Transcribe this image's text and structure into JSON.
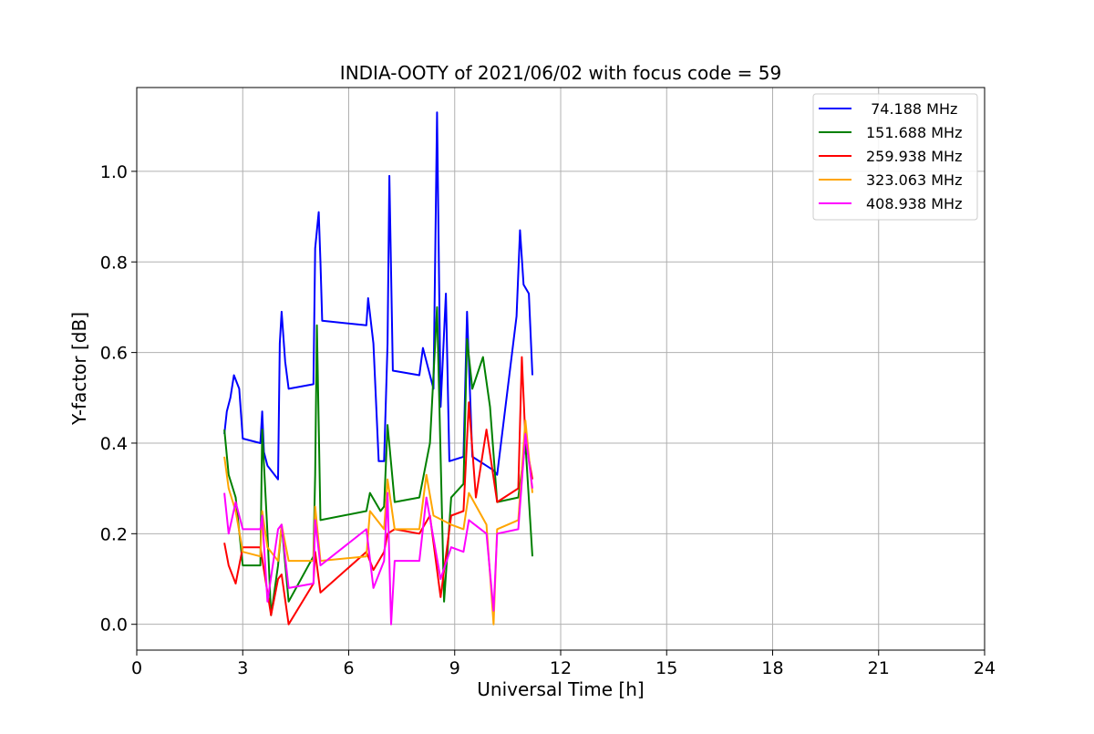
{
  "chart_data": {
    "type": "line",
    "title": "INDIA-OOTY of 2021/06/02 with focus code = 59",
    "xlabel": "Universal Time [h]",
    "ylabel": "Y-factor [dB]",
    "xlim": [
      0,
      24
    ],
    "ylim": [
      -0.057,
      1.185
    ],
    "xticks": [
      0,
      3,
      6,
      9,
      12,
      15,
      18,
      21,
      24
    ],
    "xtick_labels": [
      "0",
      "3",
      "6",
      "9",
      "12",
      "15",
      "18",
      "21",
      "24"
    ],
    "yticks": [
      0.0,
      0.2,
      0.4,
      0.6,
      0.8,
      1.0
    ],
    "ytick_labels": [
      "0.0",
      "0.2",
      "0.4",
      "0.6",
      "0.8",
      "1.0"
    ],
    "grid": true,
    "legend_position": "top-right",
    "series": [
      {
        "name": " 74.188 MHz",
        "color": "#0000ff",
        "data": [
          [
            2.48,
            0.42
          ],
          [
            2.55,
            0.47
          ],
          [
            2.65,
            0.5
          ],
          [
            2.75,
            0.55
          ],
          [
            2.9,
            0.52
          ],
          [
            3.0,
            0.41
          ],
          [
            3.5,
            0.4
          ],
          [
            3.55,
            0.47
          ],
          [
            3.6,
            0.38
          ],
          [
            3.7,
            0.35
          ],
          [
            4.0,
            0.32
          ],
          [
            4.05,
            0.62
          ],
          [
            4.1,
            0.69
          ],
          [
            4.2,
            0.58
          ],
          [
            4.3,
            0.52
          ],
          [
            5.0,
            0.53
          ],
          [
            5.05,
            0.83
          ],
          [
            5.15,
            0.91
          ],
          [
            5.2,
            0.8
          ],
          [
            5.25,
            0.67
          ],
          [
            6.5,
            0.66
          ],
          [
            6.55,
            0.72
          ],
          [
            6.7,
            0.62
          ],
          [
            6.85,
            0.36
          ],
          [
            7.0,
            0.36
          ],
          [
            7.1,
            0.62
          ],
          [
            7.15,
            0.99
          ],
          [
            7.25,
            0.56
          ],
          [
            8.0,
            0.55
          ],
          [
            8.1,
            0.61
          ],
          [
            8.4,
            0.52
          ],
          [
            8.5,
            1.13
          ],
          [
            8.6,
            0.48
          ],
          [
            8.75,
            0.73
          ],
          [
            8.85,
            0.36
          ],
          [
            9.25,
            0.37
          ],
          [
            9.35,
            0.69
          ],
          [
            9.5,
            0.37
          ],
          [
            9.9,
            0.35
          ],
          [
            10.1,
            0.34
          ],
          [
            10.2,
            0.33
          ],
          [
            10.75,
            0.68
          ],
          [
            10.85,
            0.87
          ],
          [
            10.95,
            0.75
          ],
          [
            11.1,
            0.73
          ],
          [
            11.2,
            0.55
          ]
        ]
      },
      {
        "name": "151.688 MHz",
        "color": "#008000",
        "data": [
          [
            2.48,
            0.43
          ],
          [
            2.6,
            0.33
          ],
          [
            2.8,
            0.28
          ],
          [
            3.0,
            0.13
          ],
          [
            3.5,
            0.13
          ],
          [
            3.55,
            0.43
          ],
          [
            3.7,
            0.2
          ],
          [
            3.8,
            0.02
          ],
          [
            4.0,
            0.13
          ],
          [
            4.1,
            0.22
          ],
          [
            4.3,
            0.05
          ],
          [
            5.0,
            0.15
          ],
          [
            5.05,
            0.33
          ],
          [
            5.1,
            0.66
          ],
          [
            5.2,
            0.23
          ],
          [
            6.5,
            0.25
          ],
          [
            6.6,
            0.29
          ],
          [
            6.9,
            0.25
          ],
          [
            7.0,
            0.26
          ],
          [
            7.1,
            0.44
          ],
          [
            7.3,
            0.27
          ],
          [
            8.0,
            0.28
          ],
          [
            8.3,
            0.4
          ],
          [
            8.5,
            0.7
          ],
          [
            8.7,
            0.05
          ],
          [
            8.9,
            0.28
          ],
          [
            9.25,
            0.31
          ],
          [
            9.35,
            0.63
          ],
          [
            9.5,
            0.52
          ],
          [
            9.8,
            0.59
          ],
          [
            10.0,
            0.48
          ],
          [
            10.2,
            0.27
          ],
          [
            10.8,
            0.28
          ],
          [
            11.0,
            0.4
          ],
          [
            11.2,
            0.15
          ]
        ]
      },
      {
        "name": "259.938 MHz",
        "color": "#ff0000",
        "data": [
          [
            2.48,
            0.18
          ],
          [
            2.6,
            0.13
          ],
          [
            2.8,
            0.09
          ],
          [
            3.0,
            0.17
          ],
          [
            3.5,
            0.17
          ],
          [
            3.6,
            0.12
          ],
          [
            3.8,
            0.02
          ],
          [
            4.0,
            0.1
          ],
          [
            4.1,
            0.11
          ],
          [
            4.3,
            0.0
          ],
          [
            5.0,
            0.09
          ],
          [
            5.05,
            0.16
          ],
          [
            5.2,
            0.07
          ],
          [
            6.5,
            0.16
          ],
          [
            6.7,
            0.12
          ],
          [
            7.0,
            0.16
          ],
          [
            7.1,
            0.2
          ],
          [
            7.3,
            0.21
          ],
          [
            8.0,
            0.2
          ],
          [
            8.3,
            0.24
          ],
          [
            8.6,
            0.06
          ],
          [
            8.9,
            0.24
          ],
          [
            9.25,
            0.25
          ],
          [
            9.4,
            0.49
          ],
          [
            9.6,
            0.28
          ],
          [
            9.9,
            0.43
          ],
          [
            10.2,
            0.27
          ],
          [
            10.8,
            0.3
          ],
          [
            10.9,
            0.59
          ],
          [
            11.0,
            0.41
          ],
          [
            11.2,
            0.32
          ]
        ]
      },
      {
        "name": "323.063 MHz",
        "color": "#ffa500",
        "data": [
          [
            2.48,
            0.37
          ],
          [
            2.6,
            0.3
          ],
          [
            2.8,
            0.25
          ],
          [
            3.0,
            0.16
          ],
          [
            3.5,
            0.15
          ],
          [
            3.55,
            0.25
          ],
          [
            3.7,
            0.17
          ],
          [
            4.0,
            0.14
          ],
          [
            4.1,
            0.22
          ],
          [
            4.3,
            0.14
          ],
          [
            5.0,
            0.14
          ],
          [
            5.05,
            0.26
          ],
          [
            5.2,
            0.14
          ],
          [
            6.5,
            0.15
          ],
          [
            6.6,
            0.25
          ],
          [
            7.0,
            0.21
          ],
          [
            7.1,
            0.32
          ],
          [
            7.3,
            0.21
          ],
          [
            8.0,
            0.21
          ],
          [
            8.2,
            0.33
          ],
          [
            8.4,
            0.24
          ],
          [
            8.9,
            0.22
          ],
          [
            9.25,
            0.21
          ],
          [
            9.4,
            0.29
          ],
          [
            9.9,
            0.22
          ],
          [
            10.1,
            0.0
          ],
          [
            10.2,
            0.21
          ],
          [
            10.8,
            0.23
          ],
          [
            11.0,
            0.45
          ],
          [
            11.2,
            0.29
          ]
        ]
      },
      {
        "name": "408.938 MHz",
        "color": "#ff00ff",
        "data": [
          [
            2.48,
            0.29
          ],
          [
            2.6,
            0.2
          ],
          [
            2.8,
            0.27
          ],
          [
            3.0,
            0.21
          ],
          [
            3.5,
            0.21
          ],
          [
            3.55,
            0.24
          ],
          [
            3.7,
            0.05
          ],
          [
            4.0,
            0.21
          ],
          [
            4.1,
            0.22
          ],
          [
            4.3,
            0.08
          ],
          [
            5.0,
            0.09
          ],
          [
            5.05,
            0.23
          ],
          [
            5.2,
            0.13
          ],
          [
            6.5,
            0.21
          ],
          [
            6.7,
            0.08
          ],
          [
            7.0,
            0.14
          ],
          [
            7.1,
            0.29
          ],
          [
            7.2,
            0.0
          ],
          [
            7.3,
            0.14
          ],
          [
            8.0,
            0.14
          ],
          [
            8.2,
            0.28
          ],
          [
            8.6,
            0.1
          ],
          [
            8.9,
            0.17
          ],
          [
            9.25,
            0.16
          ],
          [
            9.4,
            0.23
          ],
          [
            9.9,
            0.2
          ],
          [
            10.1,
            0.03
          ],
          [
            10.2,
            0.2
          ],
          [
            10.8,
            0.21
          ],
          [
            11.0,
            0.42
          ],
          [
            11.2,
            0.3
          ]
        ]
      }
    ]
  }
}
